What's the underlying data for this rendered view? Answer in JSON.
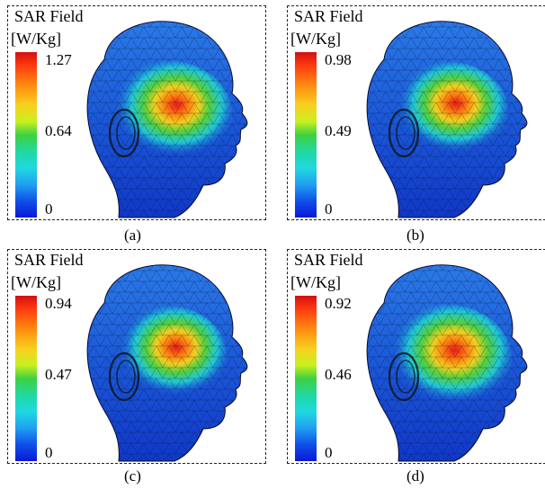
{
  "panels": [
    {
      "title": "SAR Field",
      "unit": "[W/Kg]",
      "max": "1.27",
      "mid": "0.64",
      "min": "0",
      "caption": "(a)"
    },
    {
      "title": "SAR Field",
      "unit": "[W/Kg]",
      "max": "0.98",
      "mid": "0.49",
      "min": "0",
      "caption": "(b)"
    },
    {
      "title": "SAR Field",
      "unit": "[W/Kg]",
      "max": "0.94",
      "mid": "0.47",
      "min": "0",
      "caption": "(c)"
    },
    {
      "title": "SAR Field",
      "unit": "[W/Kg]",
      "max": "0.92",
      "mid": "0.46",
      "min": "0",
      "caption": "(d)"
    }
  ],
  "colors": {
    "colormap_high": "#d21010",
    "colormap_mid": "#40d040",
    "colormap_low": "#0a18d8",
    "head_base": "#1a50d8"
  },
  "icons": [
    "head-model-icon"
  ]
}
